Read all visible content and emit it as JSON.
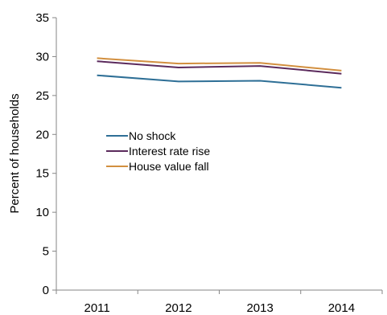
{
  "chart_data": {
    "type": "line",
    "title": "",
    "xlabel": "",
    "ylabel": "Percent of households",
    "categories": [
      "2011",
      "2012",
      "2013",
      "2014"
    ],
    "ylim": [
      0,
      35
    ],
    "yticks": [
      "0",
      "5",
      "10",
      "15",
      "20",
      "25",
      "30",
      "35"
    ],
    "grid": false,
    "legend": "center-left",
    "series": [
      {
        "name": "No shock",
        "values": [
          27.6,
          26.8,
          26.9,
          26.0
        ],
        "color": "#2e6f96"
      },
      {
        "name": "Interest rate rise",
        "values": [
          29.4,
          28.6,
          28.8,
          27.8
        ],
        "color": "#5b2a5c"
      },
      {
        "name": "House value fall",
        "values": [
          29.8,
          29.1,
          29.2,
          28.2
        ],
        "color": "#d28f3f"
      }
    ]
  }
}
